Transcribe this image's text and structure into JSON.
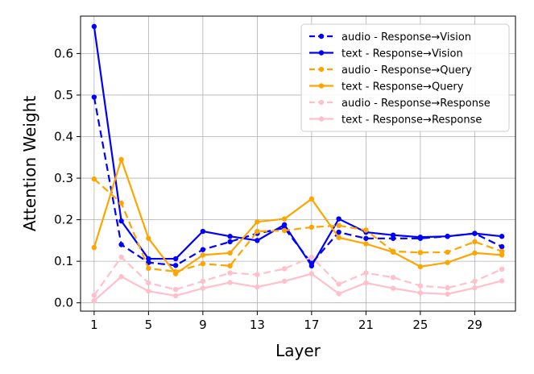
{
  "chart_data": {
    "type": "line",
    "xlabel": "Layer",
    "ylabel": "Attention Weight",
    "xlim": [
      0,
      32
    ],
    "ylim": [
      -0.02,
      0.69
    ],
    "xticks": [
      1,
      5,
      9,
      13,
      17,
      21,
      25,
      29
    ],
    "yticks": [
      0.0,
      0.1,
      0.2,
      0.3,
      0.4,
      0.5,
      0.6
    ],
    "grid": true,
    "legend_position": "top-right",
    "x": [
      1,
      3,
      5,
      7,
      9,
      11,
      13,
      15,
      17,
      19,
      21,
      23,
      25,
      27,
      29,
      31
    ],
    "series": [
      {
        "name": "audio - Response→Vision",
        "color": "#0000ff",
        "style": "dashed",
        "values": [
          0.495,
          0.14,
          0.097,
          0.09,
          0.128,
          0.147,
          0.167,
          0.18,
          0.095,
          0.17,
          0.155,
          0.155,
          0.155,
          0.16,
          0.167,
          0.135
        ]
      },
      {
        "name": "text - Response→Vision",
        "color": "#0000ff",
        "style": "solid",
        "values": [
          0.665,
          0.197,
          0.106,
          0.106,
          0.172,
          0.16,
          0.15,
          0.188,
          0.089,
          0.202,
          0.17,
          0.163,
          0.158,
          0.16,
          0.167,
          0.16
        ]
      },
      {
        "name": "audio - Response→Query",
        "color": "#ffa500",
        "style": "dashed",
        "values": [
          0.298,
          0.24,
          0.083,
          0.075,
          0.094,
          0.089,
          0.172,
          0.174,
          0.182,
          0.186,
          0.175,
          0.124,
          0.121,
          0.122,
          0.147,
          0.124
        ]
      },
      {
        "name": "text - Response→Query",
        "color": "#ffa500",
        "style": "solid",
        "values": [
          0.133,
          0.345,
          0.155,
          0.07,
          0.115,
          0.12,
          0.195,
          0.202,
          0.25,
          0.157,
          0.142,
          0.122,
          0.087,
          0.097,
          0.12,
          0.115
        ]
      },
      {
        "name": "audio - Response→Response",
        "color": "#ffc0cb",
        "style": "dashed",
        "values": [
          0.018,
          0.11,
          0.048,
          0.032,
          0.052,
          0.072,
          0.068,
          0.082,
          0.11,
          0.045,
          0.072,
          0.061,
          0.041,
          0.036,
          0.052,
          0.081
        ]
      },
      {
        "name": "text - Response→Response",
        "color": "#ffc0cb",
        "style": "solid",
        "values": [
          0.005,
          0.063,
          0.028,
          0.017,
          0.035,
          0.049,
          0.038,
          0.052,
          0.07,
          0.022,
          0.048,
          0.035,
          0.024,
          0.021,
          0.036,
          0.053
        ]
      }
    ]
  }
}
